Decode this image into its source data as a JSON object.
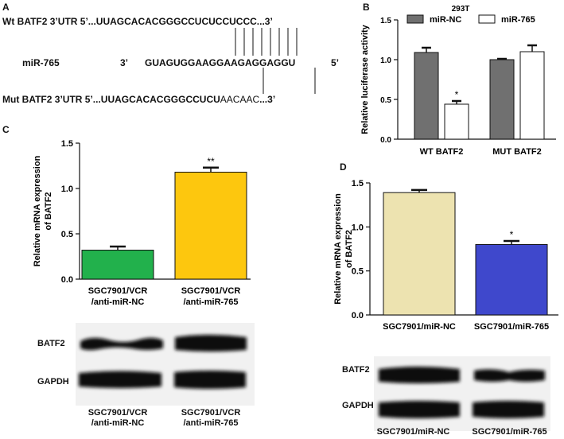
{
  "panel_a": {
    "letter": "A",
    "wt_label": "Wt BATF2 3’UTR 5’...",
    "wt_seq": "UUAGCACACGGGCCUCUCCUCCC",
    "wt_end": "...3’",
    "mir_label": "miR-765",
    "mir_3": "3’",
    "mir_seq": "GUAGUGGAAGGAAGAGGAGGU",
    "mir_5": "5’",
    "mut_label": "Mut BATF2 3’UTR 5’...",
    "mut_seq_a": "UUAGCACACGGGCCUCU",
    "mut_seq_b": "AACAAC",
    "mut_end": "...3’"
  },
  "panel_letters": {
    "b": "B",
    "c": "C",
    "d": "D"
  },
  "panel_c_blot": {
    "row1": "BATF2",
    "row2": "GAPDH",
    "lane1": [
      "SGC7901/VCR",
      "/anti-miR-NC"
    ],
    "lane2": [
      "SGC7901/VCR",
      "/anti-miR-765"
    ]
  },
  "panel_d_blot": {
    "row1": "BATF2",
    "row2": "GAPDH",
    "lane1": "SGC7901/miR-NC",
    "lane2": "SGC7901/miR-765"
  },
  "colors": {
    "mir_nc": "#707070",
    "mir_765": "#ffffff",
    "green": "#22b14c",
    "yellow": "#fdc70e",
    "beige": "#ede3b0",
    "blue": "#3f48cc"
  },
  "chart_data": [
    {
      "id": "B",
      "type": "bar",
      "title": "293T",
      "ylabel": "Relative luciferase activity",
      "categories": [
        "WT BATF2",
        "MUT BATF2"
      ],
      "series": [
        {
          "name": "miR-NC",
          "values": [
            1.09,
            1.0
          ],
          "errors": [
            0.06,
            0.01
          ],
          "color": "#707070"
        },
        {
          "name": "miR-765",
          "values": [
            0.44,
            1.1
          ],
          "errors": [
            0.04,
            0.08
          ],
          "color": "#ffffff"
        }
      ],
      "annotations": [
        {
          "category": "WT BATF2",
          "series": "miR-765",
          "text": "*"
        }
      ],
      "yticks": [
        "0.0",
        "0.5",
        "1.0",
        "1.5"
      ],
      "ylim": [
        0,
        1.5
      ],
      "legend": "top"
    },
    {
      "id": "C",
      "type": "bar",
      "ylabel": "Relative mRNA expression of BATF2",
      "categories": [
        [
          "SGC7901/VCR",
          "/anti-miR-NC"
        ],
        [
          "SGC7901/VCR",
          "/anti-miR-765"
        ]
      ],
      "values": [
        0.32,
        1.18
      ],
      "errors": [
        0.04,
        0.05
      ],
      "colors": [
        "#22b14c",
        "#fdc70e"
      ],
      "annotations": [
        "",
        "**"
      ],
      "yticks": [
        "0.0",
        "0.5",
        "1.0",
        "1.5"
      ],
      "ylim": [
        0,
        1.5
      ]
    },
    {
      "id": "D",
      "type": "bar",
      "ylabel": "Relative mRNA expression of BATF2",
      "categories": [
        [
          "SGC7901/miR-NC"
        ],
        [
          "SGC7901/miR-765"
        ]
      ],
      "values": [
        1.39,
        0.8
      ],
      "errors": [
        0.03,
        0.04
      ],
      "colors": [
        "#ede3b0",
        "#3f48cc"
      ],
      "annotations": [
        "",
        "*"
      ],
      "yticks": [
        "0.0",
        "0.5",
        "1.0",
        "1.5"
      ],
      "ylim": [
        0,
        1.5
      ]
    }
  ]
}
